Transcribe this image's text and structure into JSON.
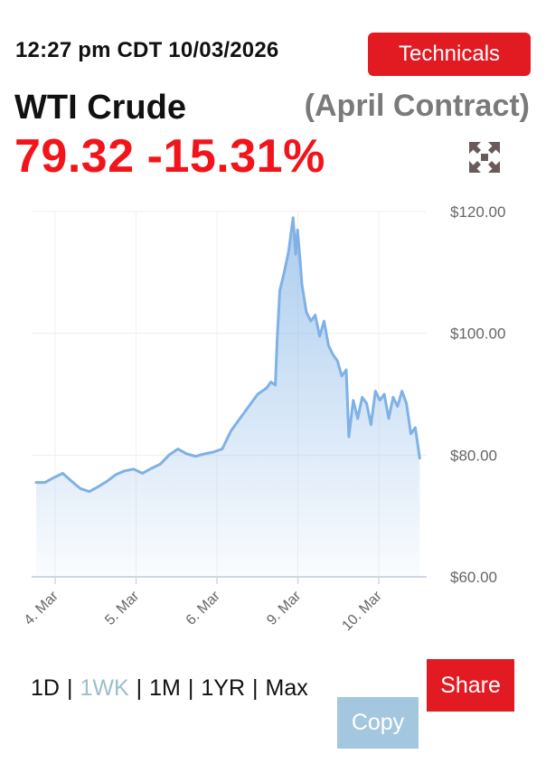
{
  "header": {
    "timestamp": "12:27 pm CDT 10/03/2026",
    "technicals_label": "Technicals"
  },
  "quote": {
    "instrument": "WTI Crude",
    "contract": "(April Contract)",
    "price": "79.32",
    "change_pct": "-15.31%",
    "expand_icon": "expand-arrows-icon"
  },
  "chart_data": {
    "type": "area",
    "x_ticks": [
      "4. Mar",
      "5. Mar",
      "6. Mar",
      "9. Mar",
      "10. Mar"
    ],
    "y_ticks": [
      "$60.00",
      "$80.00",
      "$100.00",
      "$120.00"
    ],
    "ylim": [
      60,
      120
    ],
    "grid": true,
    "points": [
      {
        "x": 0.0,
        "y": 75.5
      },
      {
        "x": 0.1,
        "y": 75.5
      },
      {
        "x": 0.2,
        "y": 76.3
      },
      {
        "x": 0.3,
        "y": 77.0
      },
      {
        "x": 0.4,
        "y": 75.7
      },
      {
        "x": 0.5,
        "y": 74.5
      },
      {
        "x": 0.6,
        "y": 74.0
      },
      {
        "x": 0.7,
        "y": 74.8
      },
      {
        "x": 0.8,
        "y": 75.7
      },
      {
        "x": 0.9,
        "y": 76.8
      },
      {
        "x": 1.0,
        "y": 77.4
      },
      {
        "x": 1.1,
        "y": 77.7
      },
      {
        "x": 1.2,
        "y": 77.0
      },
      {
        "x": 1.3,
        "y": 77.8
      },
      {
        "x": 1.4,
        "y": 78.5
      },
      {
        "x": 1.5,
        "y": 80.0
      },
      {
        "x": 1.6,
        "y": 81.0
      },
      {
        "x": 1.7,
        "y": 80.2
      },
      {
        "x": 1.8,
        "y": 79.8
      },
      {
        "x": 1.9,
        "y": 80.2
      },
      {
        "x": 2.0,
        "y": 80.5
      },
      {
        "x": 2.1,
        "y": 81.0
      },
      {
        "x": 2.2,
        "y": 84.0
      },
      {
        "x": 2.3,
        "y": 86.0
      },
      {
        "x": 2.4,
        "y": 88.0
      },
      {
        "x": 2.5,
        "y": 90.0
      },
      {
        "x": 2.6,
        "y": 91.0
      },
      {
        "x": 2.65,
        "y": 92.0
      },
      {
        "x": 2.7,
        "y": 91.5
      },
      {
        "x": 2.72,
        "y": 99.0
      },
      {
        "x": 2.75,
        "y": 107.0
      },
      {
        "x": 2.8,
        "y": 110.0
      },
      {
        "x": 2.85,
        "y": 113.5
      },
      {
        "x": 2.9,
        "y": 119.0
      },
      {
        "x": 2.93,
        "y": 113.0
      },
      {
        "x": 2.95,
        "y": 117.0
      },
      {
        "x": 2.98,
        "y": 112.0
      },
      {
        "x": 3.0,
        "y": 108.0
      },
      {
        "x": 3.05,
        "y": 103.5
      },
      {
        "x": 3.1,
        "y": 102.0
      },
      {
        "x": 3.15,
        "y": 103.0
      },
      {
        "x": 3.2,
        "y": 99.5
      },
      {
        "x": 3.25,
        "y": 102.0
      },
      {
        "x": 3.3,
        "y": 98.0
      },
      {
        "x": 3.35,
        "y": 96.5
      },
      {
        "x": 3.4,
        "y": 95.5
      },
      {
        "x": 3.45,
        "y": 93.0
      },
      {
        "x": 3.5,
        "y": 94.0
      },
      {
        "x": 3.53,
        "y": 83.0
      },
      {
        "x": 3.58,
        "y": 89.0
      },
      {
        "x": 3.63,
        "y": 86.0
      },
      {
        "x": 3.68,
        "y": 89.5
      },
      {
        "x": 3.73,
        "y": 88.5
      },
      {
        "x": 3.78,
        "y": 85.0
      },
      {
        "x": 3.83,
        "y": 90.5
      },
      {
        "x": 3.88,
        "y": 89.0
      },
      {
        "x": 3.93,
        "y": 90.0
      },
      {
        "x": 3.98,
        "y": 86.0
      },
      {
        "x": 4.03,
        "y": 89.5
      },
      {
        "x": 4.08,
        "y": 88.0
      },
      {
        "x": 4.13,
        "y": 90.5
      },
      {
        "x": 4.18,
        "y": 88.5
      },
      {
        "x": 4.23,
        "y": 83.5
      },
      {
        "x": 4.28,
        "y": 84.5
      },
      {
        "x": 4.33,
        "y": 79.5
      }
    ]
  },
  "range_selector": {
    "options": [
      "1D",
      "1WK",
      "1M",
      "1YR",
      "Max"
    ],
    "active": "1WK",
    "separator": "|"
  },
  "actions": {
    "share_label": "Share",
    "copy_label": "Copy"
  },
  "colors": {
    "accent_red": "#e21b23",
    "price_red": "#f2141a",
    "line_blue": "#7fb1e6",
    "copy_blue": "#a3c7de",
    "active_range": "#9bbfcc"
  }
}
